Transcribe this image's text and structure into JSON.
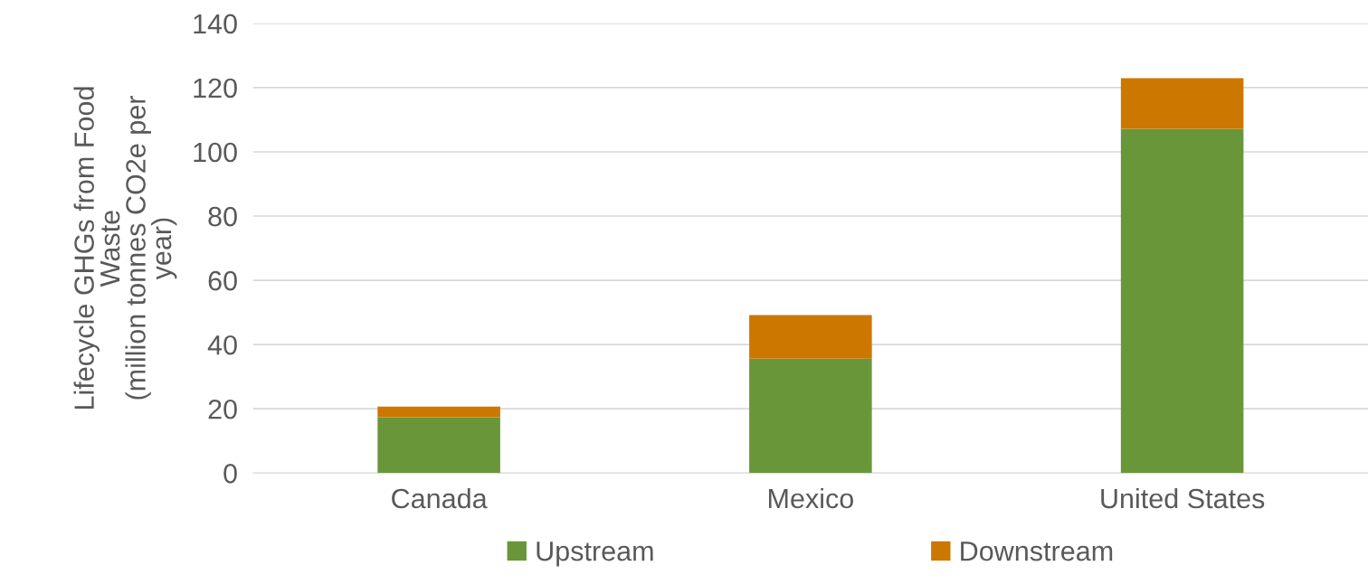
{
  "chart_data": {
    "type": "bar",
    "stacked": true,
    "ylabel": "Lifecycle GHGs from Food\nWaste\n(million tonnes CO2e per\nyear)",
    "categories": [
      "Canada",
      "Mexico",
      "United States"
    ],
    "series": [
      {
        "name": "Upstream",
        "color": "#6a963a",
        "values": [
          17.4,
          35.6,
          107.2
        ]
      },
      {
        "name": "Downstream",
        "color": "#cc7700",
        "values": [
          3.3,
          13.6,
          15.7
        ]
      }
    ],
    "ylim": [
      0,
      140
    ],
    "yticks": [
      0,
      20,
      40,
      60,
      80,
      100,
      120,
      140
    ],
    "grid": "y",
    "legend": "bottom"
  }
}
